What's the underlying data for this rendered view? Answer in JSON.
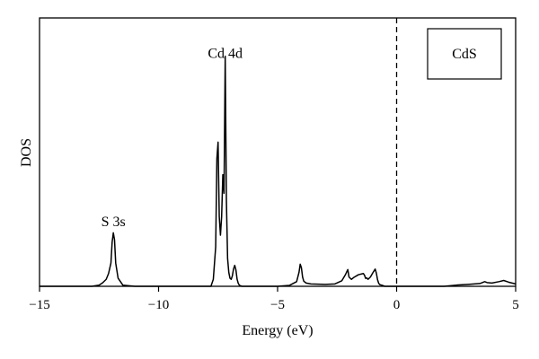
{
  "chart_data": {
    "type": "line",
    "title": "",
    "xlabel": "Energy (eV)",
    "ylabel": "DOS",
    "xlim": [
      -15,
      5
    ],
    "ylim": [
      0,
      1
    ],
    "x_ticks": [
      -15,
      -10,
      -5,
      0,
      5
    ],
    "x_tick_labels": [
      "−15",
      "−10",
      "−5",
      "0",
      "5"
    ],
    "grid": false,
    "legend": {
      "label": "CdS",
      "placement": "top-right"
    },
    "fermi_level": {
      "x": 0,
      "style": "dashed"
    },
    "annotations": [
      {
        "text": "S 3s",
        "x": -11.9,
        "y": 0.235
      },
      {
        "text": "Cd 4d",
        "x": -7.2,
        "y": 0.96
      }
    ],
    "series": [
      {
        "x": [
          -15,
          -12.8,
          -12.5,
          -12.35,
          -12.2,
          -12.1,
          -12.0,
          -11.95,
          -11.9,
          -11.85,
          -11.8,
          -11.7,
          -11.5,
          -11.0,
          -10.0,
          -9.0,
          -8.0,
          -7.8,
          -7.7,
          -7.6,
          -7.55,
          -7.5,
          -7.45,
          -7.4,
          -7.35,
          -7.3,
          -7.25,
          -7.2,
          -7.15,
          -7.1,
          -7.05,
          -7.0,
          -6.95,
          -6.9,
          -6.85,
          -6.8,
          -6.75,
          -6.7,
          -6.65,
          -6.6,
          -6.5,
          -6.3,
          -6.0,
          -5.5,
          -5.0,
          -4.5,
          -4.2,
          -4.1,
          -4.05,
          -4.0,
          -3.95,
          -3.9,
          -3.8,
          -3.6,
          -3.0,
          -2.6,
          -2.3,
          -2.15,
          -2.05,
          -2.0,
          -1.9,
          -1.8,
          -1.6,
          -1.4,
          -1.35,
          -1.3,
          -1.25,
          -1.2,
          -1.1,
          -1.0,
          -0.9,
          -0.85,
          -0.8,
          -0.75,
          -0.7,
          -0.6,
          -0.5,
          -0.4,
          -0.2,
          0.0,
          0.5,
          1.0,
          1.5,
          2.0,
          2.5,
          3.0,
          3.5,
          3.7,
          3.8,
          4.0,
          4.3,
          4.5,
          4.7,
          5.0
        ],
        "y": [
          0.0,
          0.0,
          0.005,
          0.015,
          0.03,
          0.055,
          0.1,
          0.19,
          0.23,
          0.2,
          0.1,
          0.035,
          0.005,
          0.0,
          0.0,
          0.0,
          0.0,
          0.0,
          0.03,
          0.17,
          0.55,
          0.62,
          0.3,
          0.22,
          0.3,
          0.48,
          0.4,
          0.99,
          0.37,
          0.12,
          0.06,
          0.035,
          0.03,
          0.045,
          0.075,
          0.09,
          0.07,
          0.03,
          0.012,
          0.004,
          0.0,
          0.0,
          0.0,
          0.0,
          0.0,
          0.004,
          0.02,
          0.06,
          0.095,
          0.08,
          0.04,
          0.022,
          0.014,
          0.01,
          0.008,
          0.01,
          0.024,
          0.05,
          0.072,
          0.04,
          0.03,
          0.038,
          0.05,
          0.055,
          0.048,
          0.034,
          0.036,
          0.03,
          0.04,
          0.058,
          0.074,
          0.056,
          0.028,
          0.012,
          0.007,
          0.004,
          0.0,
          0.0,
          0.0,
          0.0,
          0.0,
          0.0,
          0.0,
          0.0,
          0.005,
          0.008,
          0.012,
          0.02,
          0.016,
          0.014,
          0.02,
          0.025,
          0.018,
          0.01
        ]
      }
    ]
  }
}
